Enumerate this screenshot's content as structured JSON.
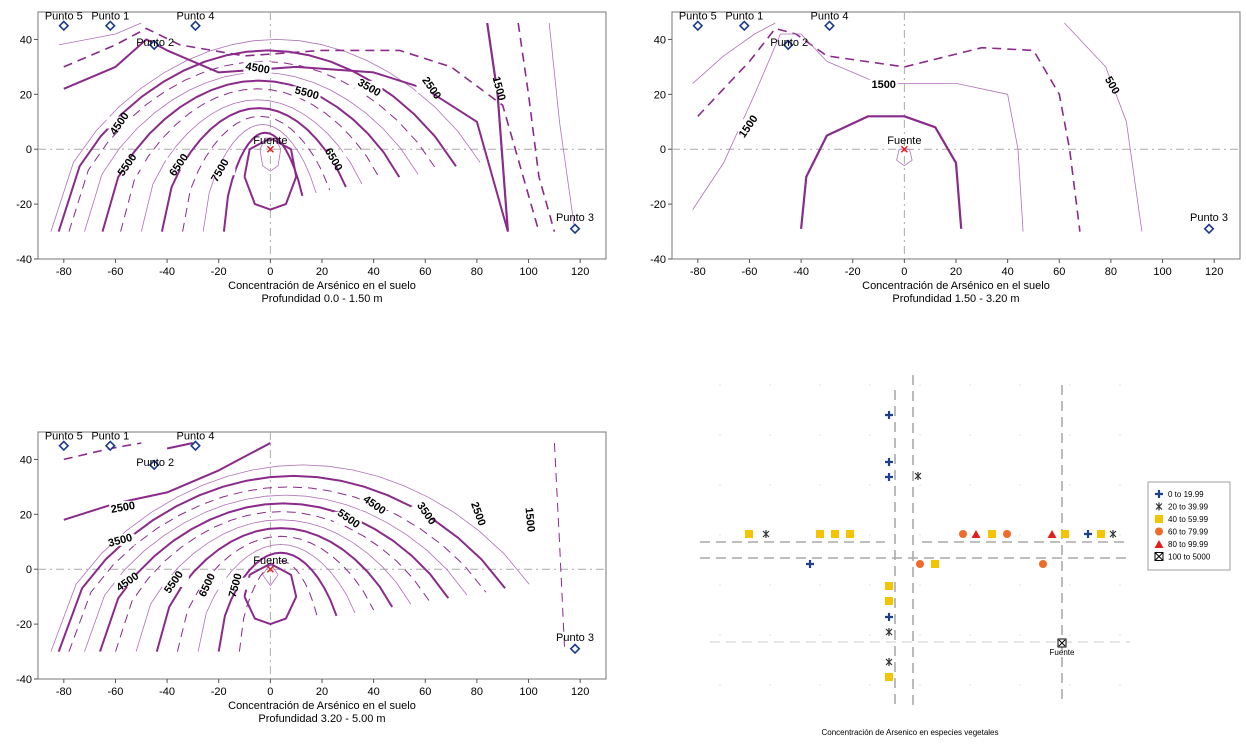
{
  "chart_data": [
    {
      "type": "contour",
      "xlabel": "Concentración de Arsénico en el suelo",
      "subtitle": "Profundidad 0.0 - 1.50 m",
      "xlim": [
        -90,
        130
      ],
      "ylim": [
        -40,
        50
      ],
      "xticks": [
        "-80",
        "-60",
        "-40",
        "-20",
        "0",
        "20",
        "40",
        "60",
        "80",
        "100",
        "120"
      ],
      "yticks": [
        "40",
        "20",
        "0",
        "-20",
        "-40"
      ],
      "points": [
        {
          "label": "Punto 5",
          "x": -80,
          "y": 45
        },
        {
          "label": "Punto 1",
          "x": -62,
          "y": 45
        },
        {
          "label": "Punto 4",
          "x": -29,
          "y": 45
        },
        {
          "label": "Punto 2",
          "x": -45,
          "y": 38
        },
        {
          "label": "Punto 3",
          "x": 118,
          "y": -29
        }
      ],
      "source": {
        "label": "Fuente",
        "x": 0,
        "y": 0
      },
      "contour_labels": [
        "4500",
        "5500",
        "3500",
        "2500",
        "1500",
        "4500",
        "5500",
        "6500",
        "7500",
        "6500"
      ]
    },
    {
      "type": "contour",
      "xlabel": "Concentración de Arsénico en el suelo",
      "subtitle": "Profundidad 1.50 - 3.20 m",
      "xlim": [
        -90,
        130
      ],
      "ylim": [
        -40,
        50
      ],
      "xticks": [
        "-80",
        "-60",
        "-40",
        "-20",
        "0",
        "20",
        "40",
        "60",
        "80",
        "100",
        "120"
      ],
      "yticks": [
        "40",
        "20",
        "0",
        "-20",
        "-40"
      ],
      "points": [
        {
          "label": "Punto 5",
          "x": -80,
          "y": 45
        },
        {
          "label": "Punto 1",
          "x": -62,
          "y": 45
        },
        {
          "label": "Punto 4",
          "x": -29,
          "y": 45
        },
        {
          "label": "Punto 2",
          "x": -45,
          "y": 38
        },
        {
          "label": "Punto 3",
          "x": 118,
          "y": -29
        }
      ],
      "source": {
        "label": "Fuente",
        "x": 0,
        "y": 0
      },
      "contour_labels": [
        "1500",
        "500",
        "1500"
      ]
    },
    {
      "type": "contour",
      "xlabel": "Concentración de Arsénico en el suelo",
      "subtitle": "Profundidad 3.20 - 5.00 m",
      "xlim": [
        -90,
        130
      ],
      "ylim": [
        -40,
        50
      ],
      "xticks": [
        "-80",
        "-60",
        "-40",
        "-20",
        "0",
        "20",
        "40",
        "60",
        "80",
        "100",
        "120"
      ],
      "yticks": [
        "40",
        "20",
        "0",
        "-20",
        "-40"
      ],
      "points": [
        {
          "label": "Punto 5",
          "x": -80,
          "y": 45
        },
        {
          "label": "Punto 1",
          "x": -62,
          "y": 45
        },
        {
          "label": "Punto 4",
          "x": -29,
          "y": 45
        },
        {
          "label": "Punto 2",
          "x": -45,
          "y": 38
        },
        {
          "label": "Punto 3",
          "x": 118,
          "y": -29
        }
      ],
      "source": {
        "label": "Fuente",
        "x": 0,
        "y": 0
      },
      "contour_labels": [
        "2500",
        "3500",
        "4500",
        "5500",
        "6500",
        "7500",
        "4500",
        "5500",
        "3500",
        "2500",
        "1500"
      ]
    },
    {
      "type": "scatter",
      "caption": "Concentración de Arsenico en especies vegetales",
      "source_label": "Fuente",
      "legend": [
        {
          "label": "0  to  19.99",
          "symbol": "cross",
          "color": "#1f3f8f"
        },
        {
          "label": "20  to  39.99",
          "symbol": "star",
          "color": "#2a2a2a"
        },
        {
          "label": "40  to  59.99",
          "symbol": "square",
          "color": "#f5c400"
        },
        {
          "label": "60  to  79.99",
          "symbol": "circle",
          "color": "#f06a2a"
        },
        {
          "label": "80  to  99.99",
          "symbol": "triangle",
          "color": "#e0201a"
        },
        {
          "label": "100  to  5000",
          "symbol": "boxx",
          "color": "#000000"
        }
      ]
    }
  ]
}
